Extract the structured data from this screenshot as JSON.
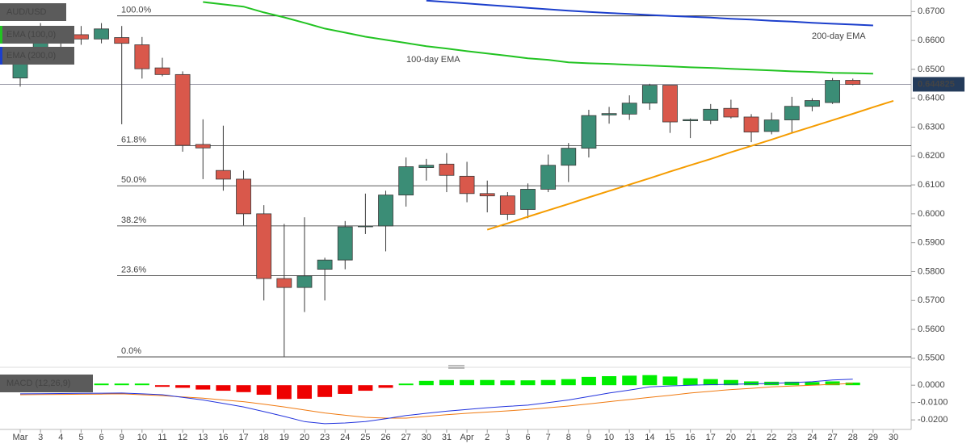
{
  "chart_data": [
    {
      "type": "candlestick",
      "title": "AUD/USD",
      "categories": [
        "Mar",
        "3",
        "4",
        "5",
        "6",
        "9",
        "10",
        "11",
        "12",
        "13",
        "16",
        "17",
        "18",
        "19",
        "20",
        "23",
        "24",
        "25",
        "26",
        "27",
        "30",
        "31",
        "Apr",
        "2",
        "3",
        "6",
        "7",
        "8",
        "9",
        "10",
        "13",
        "14",
        "15",
        "16",
        "17",
        "20",
        "21",
        "22",
        "23",
        "24",
        "27",
        "28",
        "29",
        "30"
      ],
      "open": [
        0.647,
        0.656,
        0.66,
        0.662,
        0.6605,
        0.661,
        0.6585,
        0.6505,
        0.6482,
        0.624,
        0.615,
        0.612,
        0.6,
        0.5776,
        0.5745,
        0.5808,
        0.584,
        0.5955,
        0.5958,
        0.6065,
        0.616,
        0.6172,
        0.613,
        0.607,
        0.6062,
        0.6015,
        0.6085,
        0.6168,
        0.6227,
        0.6342,
        0.6345,
        0.6383,
        0.6445,
        0.6322,
        0.6323,
        0.6365,
        0.6335,
        0.6285,
        0.6325,
        0.6372,
        0.6385,
        0.6462,
        null,
        null
      ],
      "high": [
        0.656,
        0.666,
        0.664,
        0.665,
        0.666,
        0.665,
        0.6612,
        0.654,
        0.6493,
        0.6327,
        0.6305,
        0.615,
        0.603,
        0.5965,
        0.5988,
        0.5848,
        0.5975,
        0.607,
        0.608,
        0.6195,
        0.619,
        0.621,
        0.618,
        0.6115,
        0.6075,
        0.6105,
        0.6205,
        0.6245,
        0.636,
        0.637,
        0.641,
        0.645,
        0.6445,
        0.633,
        0.638,
        0.6395,
        0.6345,
        0.635,
        0.6405,
        0.64,
        0.647,
        0.6468,
        null,
        null
      ],
      "low": [
        0.644,
        0.652,
        0.657,
        0.6585,
        0.659,
        0.631,
        0.6468,
        0.6476,
        0.6215,
        0.612,
        0.608,
        0.596,
        0.57,
        0.5506,
        0.566,
        0.57,
        0.5808,
        0.593,
        0.587,
        0.6025,
        0.6115,
        0.6075,
        0.604,
        0.6005,
        0.5978,
        0.5985,
        0.6075,
        0.611,
        0.6195,
        0.6312,
        0.6325,
        0.636,
        0.628,
        0.6262,
        0.631,
        0.633,
        0.6248,
        0.6275,
        0.628,
        0.6355,
        0.638,
        0.6445,
        null,
        null
      ],
      "close": [
        0.6535,
        0.662,
        0.662,
        0.6605,
        0.664,
        0.659,
        0.6502,
        0.6482,
        0.6237,
        0.6228,
        0.612,
        0.6,
        0.5776,
        0.5745,
        0.5785,
        0.584,
        0.5955,
        0.5958,
        0.6065,
        0.6163,
        0.6168,
        0.6133,
        0.607,
        0.6062,
        0.5998,
        0.6085,
        0.6168,
        0.6227,
        0.634,
        0.6347,
        0.6383,
        0.6445,
        0.6318,
        0.6326,
        0.6362,
        0.6335,
        0.6283,
        0.6325,
        0.6372,
        0.6392,
        0.6462,
        0.6448,
        null,
        null
      ],
      "up_color": "#3b8d76",
      "down_color": "#d9584b",
      "series": [
        {
          "name": "EMA (100,0)",
          "annotation": "100-day EMA",
          "color": "#22c322",
          "values": [
            null,
            null,
            null,
            null,
            null,
            null,
            null,
            null,
            null,
            0.6733,
            0.6725,
            0.6717,
            0.6697,
            0.668,
            0.6661,
            0.6641,
            0.6627,
            0.6613,
            0.6602,
            0.6591,
            0.658,
            0.6572,
            0.6563,
            0.6555,
            0.6547,
            0.6538,
            0.6533,
            0.6524,
            0.6521,
            0.6519,
            0.6516,
            0.6513,
            0.651,
            0.6507,
            0.6505,
            0.6502,
            0.6499,
            0.6496,
            0.6493,
            0.6491,
            0.6488,
            0.6487,
            0.6485,
            null
          ]
        },
        {
          "name": "EMA (200,0)",
          "annotation": "200-day EMA",
          "color": "#1c3fcc",
          "values": [
            null,
            null,
            null,
            null,
            null,
            null,
            null,
            null,
            null,
            null,
            null,
            null,
            null,
            null,
            null,
            null,
            null,
            null,
            null,
            null,
            0.6738,
            0.6733,
            0.6728,
            0.6723,
            0.6718,
            0.6713,
            0.6708,
            0.6703,
            0.6699,
            0.6695,
            0.6692,
            0.6688,
            0.6685,
            0.6682,
            0.6679,
            0.6675,
            0.6672,
            0.6668,
            0.6665,
            0.6661,
            0.6658,
            0.6655,
            0.6652,
            null
          ]
        }
      ],
      "trendline": {
        "color": "#f59c00",
        "values": [
          null,
          null,
          null,
          null,
          null,
          null,
          null,
          null,
          null,
          null,
          null,
          null,
          null,
          null,
          null,
          null,
          null,
          null,
          null,
          null,
          null,
          null,
          null,
          0.5945,
          0.5967,
          0.599,
          0.6012,
          0.6034,
          0.6057,
          0.6079,
          0.6101,
          0.6123,
          0.6146,
          0.6168,
          0.619,
          0.6213,
          0.6235,
          0.6257,
          0.628,
          0.6302,
          0.6324,
          0.6346,
          0.6369,
          0.6391
        ]
      },
      "fib_levels": [
        {
          "label": "100.0%",
          "value": 0.6685
        },
        {
          "label": "61.8%",
          "value": 0.6236
        },
        {
          "label": "50.0%",
          "value": 0.6097
        },
        {
          "label": "38.2%",
          "value": 0.5958
        },
        {
          "label": "23.6%",
          "value": 0.5786
        },
        {
          "label": "0.0%",
          "value": 0.5505
        }
      ],
      "last_price": 0.644825,
      "ylim": [
        0.548,
        0.674
      ],
      "yticks": [
        {
          "value": 0.55,
          "label": "0.5500"
        },
        {
          "value": 0.56,
          "label": "0.5600"
        },
        {
          "value": 0.57,
          "label": "0.5700"
        },
        {
          "value": 0.58,
          "label": "0.5800"
        },
        {
          "value": 0.59,
          "label": "0.5900"
        },
        {
          "value": 0.6,
          "label": "0.6000"
        },
        {
          "value": 0.61,
          "label": "0.6100"
        },
        {
          "value": 0.62,
          "label": "0.6200"
        },
        {
          "value": 0.63,
          "label": "0.6300"
        },
        {
          "value": 0.64,
          "label": "0.6400"
        },
        {
          "value": 0.65,
          "label": "0.6500"
        },
        {
          "value": 0.66,
          "label": "0.6600"
        },
        {
          "value": 0.67,
          "label": "0.6700"
        }
      ]
    },
    {
      "type": "macd",
      "title": "MACD (12,26,9)",
      "values": [
        0.0003,
        0.0003,
        0.0003,
        0.0003,
        0.0003,
        0.0003,
        0.0001,
        -0.0002,
        -0.0015,
        -0.0025,
        -0.0032,
        -0.004,
        -0.0055,
        -0.008,
        -0.0078,
        -0.0068,
        -0.005,
        -0.0032,
        -0.0015,
        0.0002,
        0.0025,
        0.003,
        0.003,
        0.003,
        0.0028,
        0.0028,
        0.003,
        0.0035,
        0.0048,
        0.0052,
        0.0055,
        0.0058,
        0.005,
        0.004,
        0.0035,
        0.003,
        0.0022,
        0.002,
        0.002,
        0.0018,
        0.0022,
        0.0015,
        null,
        null
      ],
      "up_color": "#00ee00",
      "down_color": "#ee0000",
      "macd_line": {
        "color": "#2233dd",
        "values": [
          -0.005,
          -0.0049,
          -0.0048,
          -0.0047,
          -0.0046,
          -0.0045,
          -0.005,
          -0.0055,
          -0.007,
          -0.0085,
          -0.0105,
          -0.0125,
          -0.0152,
          -0.018,
          -0.021,
          -0.0222,
          -0.0218,
          -0.021,
          -0.0193,
          -0.0175,
          -0.0162,
          -0.015,
          -0.014,
          -0.013,
          -0.0122,
          -0.0115,
          -0.01,
          -0.0085,
          -0.0065,
          -0.0045,
          -0.0028,
          -0.001,
          -0.0004,
          0.0,
          0.0003,
          0.0005,
          0.0008,
          0.001,
          0.0015,
          0.002,
          0.003,
          0.0035,
          null,
          null
        ]
      },
      "signal_line": {
        "color": "#f07a10",
        "values": [
          -0.0055,
          -0.0054,
          -0.0053,
          -0.0052,
          -0.0051,
          -0.005,
          -0.0055,
          -0.006,
          -0.0068,
          -0.0075,
          -0.0085,
          -0.0095,
          -0.011,
          -0.0125,
          -0.0143,
          -0.016,
          -0.0173,
          -0.0185,
          -0.019,
          -0.019,
          -0.018,
          -0.017,
          -0.0162,
          -0.0155,
          -0.0148,
          -0.014,
          -0.013,
          -0.012,
          -0.0108,
          -0.0095,
          -0.0083,
          -0.007,
          -0.0058,
          -0.0045,
          -0.0035,
          -0.0025,
          -0.0018,
          -0.001,
          -0.0005,
          0.0,
          0.0005,
          0.001,
          null,
          null
        ]
      },
      "ylim": [
        -0.0255,
        0.008
      ],
      "yticks": [
        {
          "value": 0,
          "label": "0.0000"
        },
        {
          "value": -0.01,
          "label": "-0.0100"
        },
        {
          "value": -0.02,
          "label": "-0.0200"
        }
      ]
    }
  ]
}
